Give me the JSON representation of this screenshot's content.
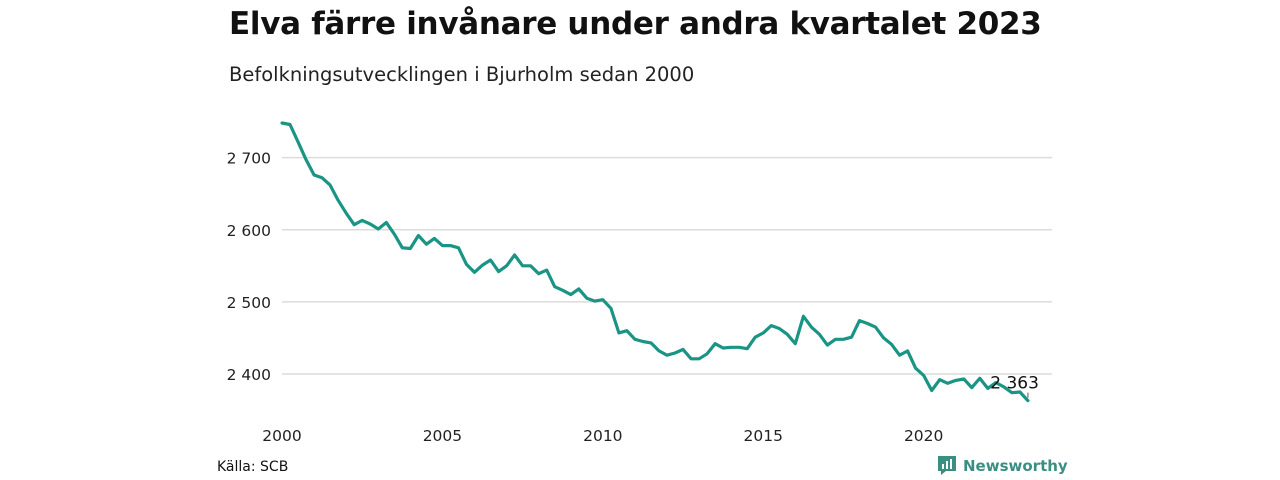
{
  "title": "Elva färre invånare under andra kvartalet 2023",
  "subtitle": "Befolkningsutvecklingen i Bjurholm sedan 2000",
  "source": "Källa: SCB",
  "brand": "Newsworthy",
  "colors": {
    "line": "#1a9484",
    "grid": "#dcdcdc",
    "brand": "#3a8f82"
  },
  "chart_data": {
    "type": "line",
    "title": "Elva färre invånare under andra kvartalet 2023",
    "subtitle": "Befolkningsutvecklingen i Bjurholm sedan 2000",
    "xlabel": "",
    "ylabel": "",
    "x_range": [
      2000,
      2024
    ],
    "ylim": [
      2350,
      2755
    ],
    "x_ticks": [
      2000,
      2005,
      2010,
      2015,
      2020
    ],
    "x_tick_labels": [
      "2000",
      "2005",
      "2010",
      "2015",
      "2020"
    ],
    "y_ticks": [
      2400,
      2500,
      2600,
      2700
    ],
    "y_tick_labels": [
      "2 400",
      "2 500",
      "2 600",
      "2 700"
    ],
    "grid": true,
    "last_value_label": "2 363",
    "series": [
      {
        "values": [
          [
            2000.0,
            2748
          ],
          [
            2000.25,
            2746
          ],
          [
            2000.5,
            2722
          ],
          [
            2000.75,
            2697
          ],
          [
            2001.0,
            2676
          ],
          [
            2001.25,
            2672
          ],
          [
            2001.5,
            2662
          ],
          [
            2001.75,
            2641
          ],
          [
            2002.0,
            2623
          ],
          [
            2002.25,
            2607
          ],
          [
            2002.5,
            2613
          ],
          [
            2002.75,
            2608
          ],
          [
            2003.0,
            2601
          ],
          [
            2003.25,
            2610
          ],
          [
            2003.5,
            2594
          ],
          [
            2003.75,
            2575
          ],
          [
            2004.0,
            2574
          ],
          [
            2004.25,
            2592
          ],
          [
            2004.5,
            2580
          ],
          [
            2004.75,
            2588
          ],
          [
            2005.0,
            2578
          ],
          [
            2005.25,
            2578
          ],
          [
            2005.5,
            2575
          ],
          [
            2005.75,
            2552
          ],
          [
            2006.0,
            2541
          ],
          [
            2006.25,
            2551
          ],
          [
            2006.5,
            2558
          ],
          [
            2006.75,
            2542
          ],
          [
            2007.0,
            2550
          ],
          [
            2007.25,
            2565
          ],
          [
            2007.5,
            2550
          ],
          [
            2007.75,
            2550
          ],
          [
            2008.0,
            2539
          ],
          [
            2008.25,
            2544
          ],
          [
            2008.5,
            2521
          ],
          [
            2008.75,
            2516
          ],
          [
            2009.0,
            2510
          ],
          [
            2009.25,
            2518
          ],
          [
            2009.5,
            2505
          ],
          [
            2009.75,
            2501
          ],
          [
            2010.0,
            2503
          ],
          [
            2010.25,
            2491
          ],
          [
            2010.5,
            2457
          ],
          [
            2010.75,
            2460
          ],
          [
            2011.0,
            2448
          ],
          [
            2011.25,
            2445
          ],
          [
            2011.5,
            2443
          ],
          [
            2011.75,
            2432
          ],
          [
            2012.0,
            2426
          ],
          [
            2012.25,
            2429
          ],
          [
            2012.5,
            2434
          ],
          [
            2012.75,
            2421
          ],
          [
            2013.0,
            2421
          ],
          [
            2013.25,
            2428
          ],
          [
            2013.5,
            2442
          ],
          [
            2013.75,
            2436
          ],
          [
            2014.0,
            2437
          ],
          [
            2014.25,
            2437
          ],
          [
            2014.5,
            2435
          ],
          [
            2014.75,
            2451
          ],
          [
            2015.0,
            2457
          ],
          [
            2015.25,
            2467
          ],
          [
            2015.5,
            2463
          ],
          [
            2015.75,
            2455
          ],
          [
            2016.0,
            2442
          ],
          [
            2016.25,
            2480
          ],
          [
            2016.5,
            2465
          ],
          [
            2016.75,
            2455
          ],
          [
            2017.0,
            2440
          ],
          [
            2017.25,
            2448
          ],
          [
            2017.5,
            2448
          ],
          [
            2017.75,
            2451
          ],
          [
            2018.0,
            2474
          ],
          [
            2018.25,
            2470
          ],
          [
            2018.5,
            2465
          ],
          [
            2018.75,
            2450
          ],
          [
            2019.0,
            2441
          ],
          [
            2019.25,
            2426
          ],
          [
            2019.5,
            2432
          ],
          [
            2019.75,
            2408
          ],
          [
            2020.0,
            2398
          ],
          [
            2020.25,
            2377
          ],
          [
            2020.5,
            2392
          ],
          [
            2020.75,
            2387
          ],
          [
            2021.0,
            2391
          ],
          [
            2021.25,
            2393
          ],
          [
            2021.5,
            2381
          ],
          [
            2021.75,
            2394
          ],
          [
            2022.0,
            2380
          ],
          [
            2022.25,
            2388
          ],
          [
            2022.5,
            2382
          ],
          [
            2022.75,
            2374
          ],
          [
            2023.0,
            2375
          ],
          [
            2023.25,
            2363
          ]
        ]
      }
    ]
  }
}
